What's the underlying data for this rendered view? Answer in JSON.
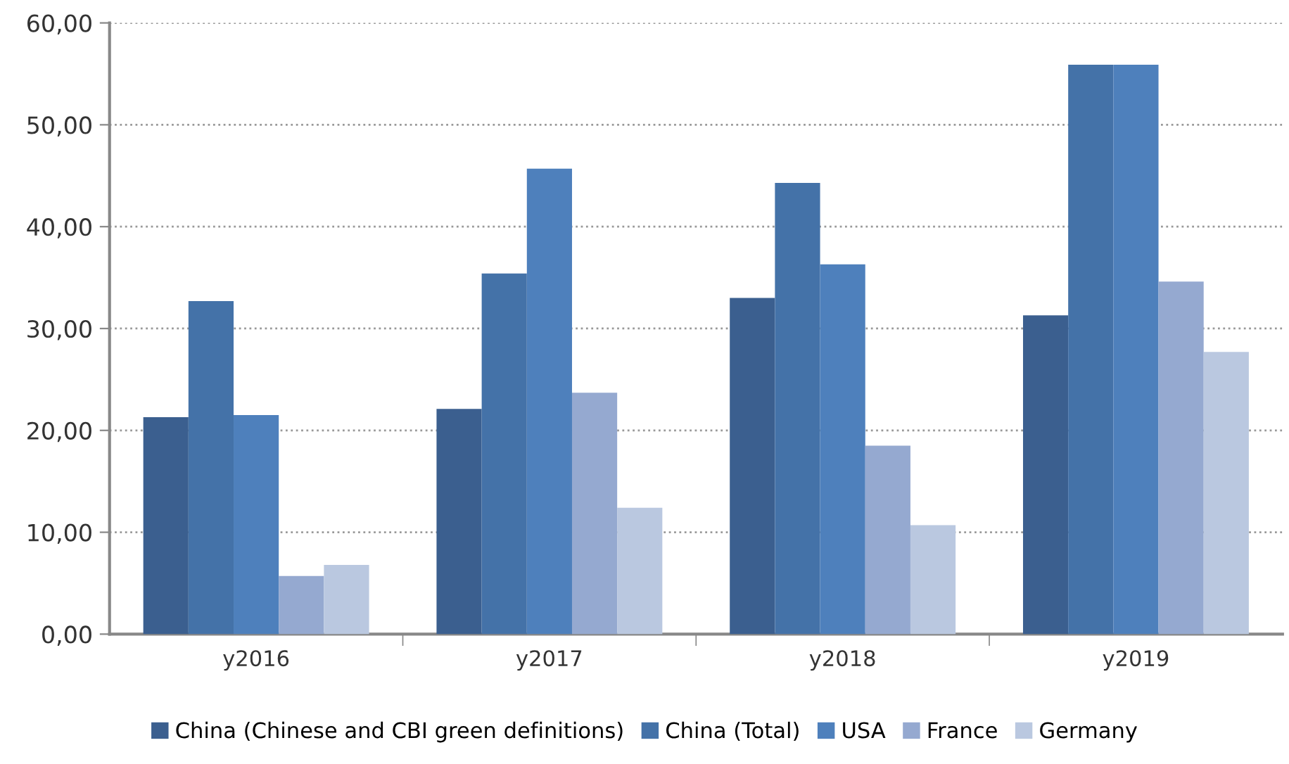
{
  "chart_data": {
    "type": "bar",
    "categories": [
      "y2016",
      "y2017",
      "y2018",
      "y2019"
    ],
    "series": [
      {
        "name": "China (Chinese and CBI green definitions)",
        "color": "#3b5f8f",
        "values": [
          21.3,
          22.1,
          33.0,
          31.3
        ]
      },
      {
        "name": "China (Total)",
        "color": "#4472a8",
        "values": [
          32.7,
          35.4,
          44.3,
          55.9
        ]
      },
      {
        "name": "USA",
        "color": "#4e80bc",
        "values": [
          21.5,
          45.7,
          36.3,
          55.9
        ]
      },
      {
        "name": "France",
        "color": "#95a9d0",
        "values": [
          5.7,
          23.7,
          18.5,
          34.6
        ]
      },
      {
        "name": "Germany",
        "color": "#bac8e0",
        "values": [
          6.8,
          12.4,
          10.7,
          27.7
        ]
      }
    ],
    "ylim": [
      0,
      60
    ],
    "yticks": [
      {
        "value": 0,
        "label": "0,00"
      },
      {
        "value": 10,
        "label": "10,00"
      },
      {
        "value": 20,
        "label": "20,00"
      },
      {
        "value": 30,
        "label": "30,00"
      },
      {
        "value": 40,
        "label": "40,00"
      },
      {
        "value": 50,
        "label": "50,00"
      },
      {
        "value": 60,
        "label": "60,00"
      }
    ],
    "grid": "y",
    "legend": "bottom"
  }
}
